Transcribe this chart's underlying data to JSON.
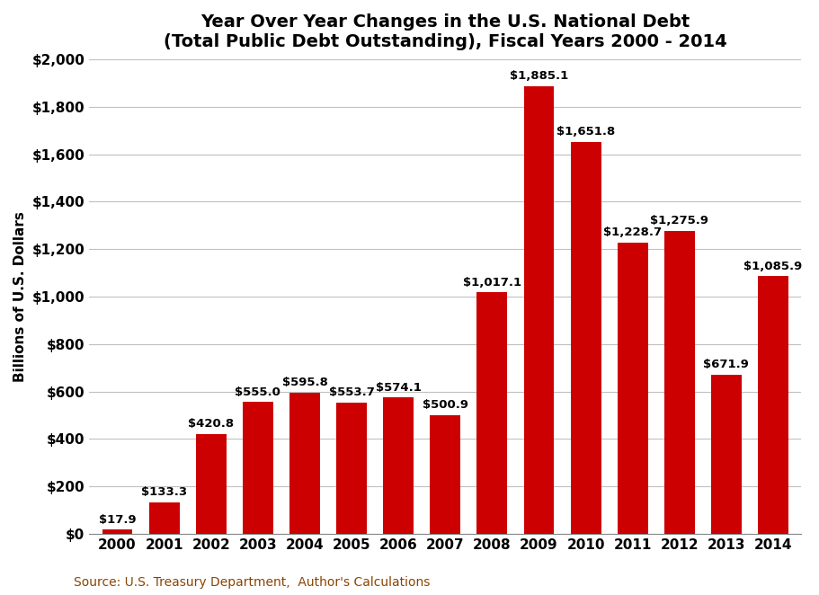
{
  "title": "Year Over Year Changes in the U.S. National Debt\n(Total Public Debt Outstanding), Fiscal Years 2000 - 2014",
  "ylabel": "Billions of U.S. Dollars",
  "source": "Source: U.S. Treasury Department,  Author's Calculations",
  "categories": [
    "2000",
    "2001",
    "2002",
    "2003",
    "2004",
    "2005",
    "2006",
    "2007",
    "2008",
    "2009",
    "2010",
    "2011",
    "2012",
    "2013",
    "2014"
  ],
  "values": [
    17.9,
    133.3,
    420.8,
    555.0,
    595.8,
    553.7,
    574.1,
    500.9,
    1017.1,
    1885.1,
    1651.8,
    1228.7,
    1275.9,
    671.9,
    1085.9
  ],
  "labels": [
    "$17.9",
    "$133.3",
    "$420.8",
    "$555.0",
    "$595.8",
    "$553.7",
    "$574.1",
    "$500.9",
    "$1,017.1",
    "$1,885.1",
    "$1,651.8",
    "$1,228.7",
    "$1,275.9",
    "$671.9",
    "$1,085.9"
  ],
  "bar_color": "#CC0000",
  "ylim": [
    0,
    2000
  ],
  "yticks": [
    0,
    200,
    400,
    600,
    800,
    1000,
    1200,
    1400,
    1600,
    1800,
    2000
  ],
  "ytick_labels": [
    "$0",
    "$200",
    "$400",
    "$600",
    "$800",
    "$1,000",
    "$1,200",
    "$1,400",
    "$1,600",
    "$1,800",
    "$2,000"
  ],
  "background_color": "#ffffff",
  "title_fontsize": 14,
  "label_fontsize": 9.5,
  "axis_tick_fontsize": 11,
  "ylabel_fontsize": 11,
  "source_fontsize": 10,
  "source_color": "#8B4500",
  "grid_color": "#C0C0C0"
}
